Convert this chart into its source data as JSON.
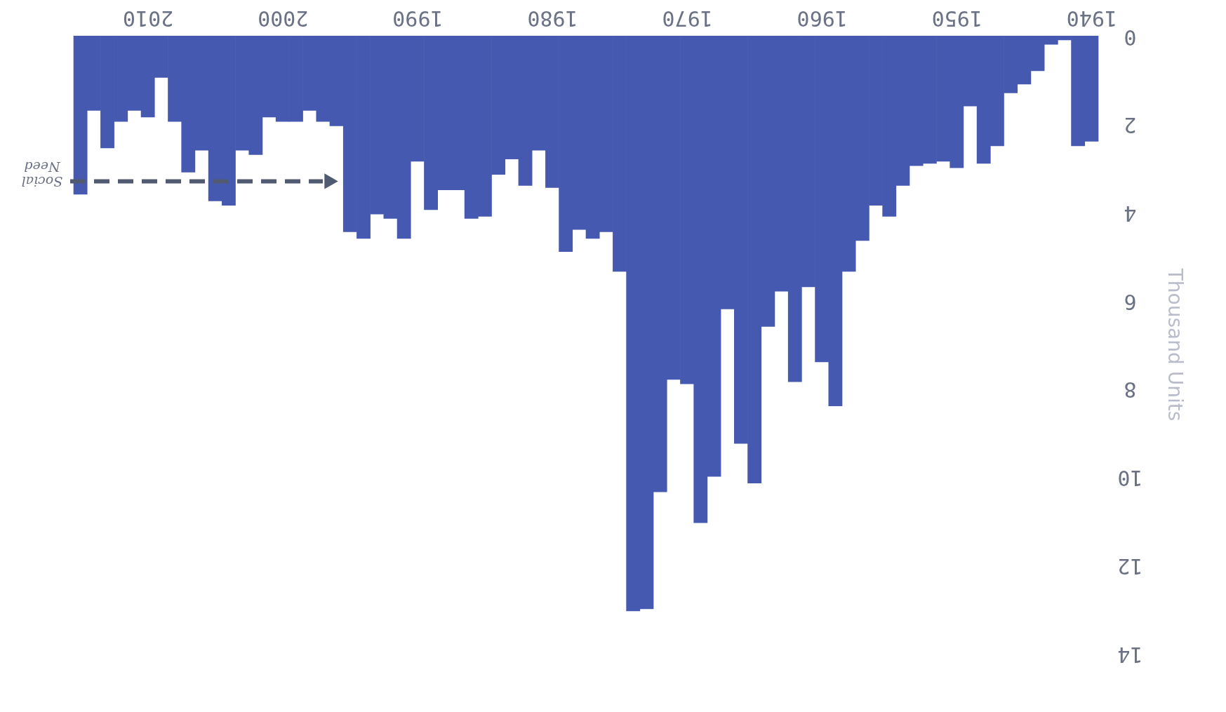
{
  "chart_data": {
    "type": "bar",
    "ylabel": "Thousand Units",
    "color": "#4659b0",
    "x": [
      1940,
      1941,
      1942,
      1943,
      1944,
      1945,
      1946,
      1947,
      1948,
      1949,
      1950,
      1951,
      1952,
      1953,
      1954,
      1955,
      1956,
      1957,
      1958,
      1959,
      1960,
      1961,
      1962,
      1963,
      1964,
      1965,
      1966,
      1967,
      1968,
      1969,
      1970,
      1971,
      1972,
      1973,
      1974,
      1975,
      1976,
      1977,
      1978,
      1979,
      1980,
      1981,
      1982,
      1983,
      1984,
      1985,
      1986,
      1987,
      1988,
      1989,
      1990,
      1991,
      1992,
      1993,
      1994,
      1995,
      1996,
      1997,
      1998,
      1999,
      2000,
      2001,
      2002,
      2003,
      2004,
      2005,
      2006,
      2007,
      2008,
      2009,
      2010,
      2011,
      2012,
      2013,
      2014,
      2015
    ],
    "values": [
      2.4,
      2.5,
      0.1,
      0.2,
      0.8,
      1.1,
      1.3,
      2.5,
      2.9,
      1.6,
      3.0,
      2.85,
      2.9,
      2.95,
      3.4,
      4.1,
      3.85,
      4.65,
      5.35,
      8.4,
      7.4,
      5.7,
      7.85,
      5.8,
      6.6,
      10.15,
      9.25,
      6.2,
      10.0,
      11.05,
      7.9,
      7.8,
      10.35,
      13.0,
      13.05,
      5.35,
      4.45,
      4.6,
      4.4,
      4.9,
      3.45,
      2.6,
      3.4,
      2.8,
      3.15,
      4.1,
      4.15,
      3.5,
      3.5,
      3.95,
      2.85,
      4.6,
      4.15,
      4.05,
      4.6,
      4.45,
      2.05,
      1.95,
      1.7,
      1.95,
      1.95,
      1.85,
      2.7,
      2.6,
      3.85,
      3.75,
      2.6,
      3.1,
      1.95,
      0.95,
      1.85,
      1.7,
      1.95,
      2.55,
      1.7,
      3.6
    ],
    "xlim": [
      2015.5,
      1939.5
    ],
    "xticks": [
      1940,
      1950,
      1960,
      1970,
      1980,
      1990,
      2000,
      2010
    ],
    "ylim": [
      14,
      0
    ],
    "yticks": [
      0,
      2,
      4,
      6,
      8,
      10,
      12,
      14
    ],
    "ref_lines": [
      {
        "axis": "y",
        "value": 3.3,
        "label": "Social Need",
        "color": "#505a70",
        "line_style": "dashed"
      }
    ]
  }
}
